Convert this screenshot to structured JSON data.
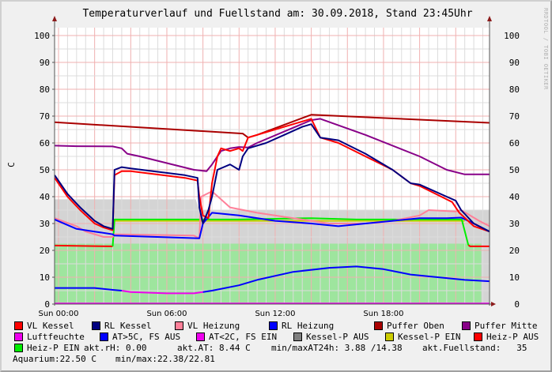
{
  "title": "Temperaturverlauf und Fuellstand am: 30.09.2018, Stand 23:45Uhr",
  "watermark": "RRDTOOL / TOBI OETIKER",
  "chart_data": {
    "type": "line",
    "title": "Temperaturverlauf und Fuellstand am: 30.09.2018, Stand 23:45Uhr",
    "ylabel": "C",
    "ylim": [
      0,
      100
    ],
    "yticks": [
      0,
      10,
      20,
      30,
      40,
      50,
      60,
      70,
      80,
      90,
      100
    ],
    "xticks": [
      "Sun 00:00",
      "Sun 06:00",
      "Sun 12:00",
      "Sun 18:00"
    ],
    "grid": true,
    "legend_placement": "bottom",
    "areas": [
      {
        "name": "Kessel-P AUS",
        "color": "#d4d4d4",
        "points": [
          [
            "Sat 23:47",
            39
          ],
          [
            "Sun 07:36",
            39
          ],
          [
            "Sun 07:48",
            35
          ],
          [
            "Sun 23:55",
            35
          ]
        ]
      },
      {
        "name": "Fuellstand",
        "color": "#9ee59e",
        "points": [
          [
            "Sat 23:47",
            22.5
          ],
          [
            "Sun 23:25",
            22.5
          ]
        ]
      }
    ],
    "series": [
      {
        "name": "Kessel-P EIN",
        "color": "#cccc00",
        "points": [
          [
            "Sun 03:06",
            31
          ],
          [
            "Sun 22:30",
            31
          ]
        ]
      },
      {
        "name": "Heiz-P AUS",
        "color": "#ff0000",
        "points": [
          [
            "Sat 23:47",
            21.8
          ],
          [
            "Sun 03:00",
            21.5
          ]
        ]
      },
      {
        "name": "Heiz-P AUS",
        "color": "#ff0000",
        "points": [
          [
            "Sun 22:42",
            22
          ],
          [
            "Sun 22:48",
            21.5
          ],
          [
            "Sun 23:55",
            21.5
          ]
        ]
      },
      {
        "name": "Heiz-P EIN",
        "color": "#00ee00",
        "points": [
          [
            "Sun 03:00",
            21.5
          ],
          [
            "Sun 03:06",
            31.5
          ],
          [
            "Sun 10:00",
            31.5
          ],
          [
            "Sun 14:00",
            32
          ],
          [
            "Sun 16:30",
            31.5
          ],
          [
            "Sun 22:20",
            31.5
          ],
          [
            "Sun 22:42",
            22
          ]
        ]
      },
      {
        "name": "Puffer Oben",
        "color": "#aa0000",
        "points": [
          [
            "Sat 23:47",
            67.7
          ],
          [
            "Sun 10:12",
            63.5
          ],
          [
            "Sun 10:30",
            62
          ],
          [
            "Sun 11:00",
            63
          ],
          [
            "Sun 14:00",
            70.5
          ],
          [
            "Sun 23:55",
            67.5
          ]
        ]
      },
      {
        "name": "Puffer Mitte",
        "color": "#880088",
        "points": [
          [
            "Sat 23:47",
            59
          ],
          [
            "Sun 01:00",
            58.8
          ],
          [
            "Sun 03:00",
            58.7
          ],
          [
            "Sun 03:30",
            58
          ],
          [
            "Sun 03:48",
            56
          ],
          [
            "Sun 04:30",
            55
          ],
          [
            "Sun 07:30",
            50
          ],
          [
            "Sun 08:12",
            49.5
          ],
          [
            "Sun 08:30",
            52
          ],
          [
            "Sun 09:00",
            57
          ],
          [
            "Sun 09:30",
            58
          ],
          [
            "Sun 10:00",
            58.5
          ],
          [
            "Sun 10:30",
            58.3
          ],
          [
            "Sun 11:00",
            60
          ],
          [
            "Sun 14:00",
            68.5
          ],
          [
            "Sun 14:30",
            69
          ],
          [
            "Sun 17:00",
            63
          ],
          [
            "Sun 20:00",
            55
          ],
          [
            "Sun 21:30",
            50
          ],
          [
            "Sun 22:30",
            48.3
          ],
          [
            "Sun 23:55",
            48.3
          ]
        ]
      },
      {
        "name": "VL Heizung",
        "color": "#ff8099",
        "points": [
          [
            "Sat 23:47",
            32
          ],
          [
            "Sun 01:00",
            29
          ],
          [
            "Sun 01:30",
            27
          ],
          [
            "Sun 02:30",
            25
          ],
          [
            "Sun 03:00",
            25
          ],
          [
            "Sun 03:06",
            26
          ],
          [
            "Sun 07:30",
            25.5
          ],
          [
            "Sun 07:48",
            24.5
          ],
          [
            "Sun 07:54",
            40
          ],
          [
            "Sun 08:30",
            42
          ],
          [
            "Sun 09:30",
            36
          ],
          [
            "Sun 11:00",
            34
          ],
          [
            "Sun 13:00",
            32
          ],
          [
            "Sun 15:00",
            30
          ],
          [
            "Sun 17:00",
            30
          ],
          [
            "Sun 18:30",
            31
          ],
          [
            "Sun 20:00",
            33
          ],
          [
            "Sun 20:30",
            35
          ],
          [
            "Sun 22:00",
            34.5
          ],
          [
            "Sun 22:18",
            35
          ],
          [
            "Sun 23:18",
            31
          ],
          [
            "Sun 23:55",
            29
          ]
        ]
      },
      {
        "name": "RL Heizung",
        "color": "#0000ff",
        "points": [
          [
            "Sat 23:47",
            31.5
          ],
          [
            "Sun 01:00",
            28
          ],
          [
            "Sun 02:00",
            27
          ],
          [
            "Sun 03:00",
            26
          ],
          [
            "Sun 03:06",
            25.5
          ],
          [
            "Sun 07:48",
            24.5
          ],
          [
            "Sun 08:00",
            30
          ],
          [
            "Sun 08:30",
            34
          ],
          [
            "Sun 10:00",
            33
          ],
          [
            "Sun 12:00",
            31
          ],
          [
            "Sun 14:00",
            30
          ],
          [
            "Sun 15:30",
            29
          ],
          [
            "Sun 17:00",
            30
          ],
          [
            "Sun 18:30",
            31
          ],
          [
            "Sun 20:00",
            32
          ],
          [
            "Sun 21:30",
            32
          ],
          [
            "Sun 22:18",
            32.2
          ],
          [
            "Sun 23:00",
            30
          ],
          [
            "Sun 23:55",
            27
          ]
        ]
      },
      {
        "name": "VL Kessel",
        "color": "#ff0000",
        "points": [
          [
            "Sat 23:47",
            47
          ],
          [
            "Sun 00:30",
            40
          ],
          [
            "Sun 01:12",
            35
          ],
          [
            "Sun 02:00",
            30
          ],
          [
            "Sun 02:30",
            28.5
          ],
          [
            "Sun 03:00",
            27.5
          ],
          [
            "Sun 03:06",
            48
          ],
          [
            "Sun 03:30",
            49.5
          ],
          [
            "Sun 04:00",
            49.5
          ],
          [
            "Sun 07:00",
            47
          ],
          [
            "Sun 07:42",
            46
          ],
          [
            "Sun 07:48",
            40
          ],
          [
            "Sun 08:00",
            33
          ],
          [
            "Sun 08:18",
            32
          ],
          [
            "Sun 08:30",
            45
          ],
          [
            "Sun 08:48",
            55
          ],
          [
            "Sun 09:00",
            58
          ],
          [
            "Sun 09:30",
            57
          ],
          [
            "Sun 10:00",
            58
          ],
          [
            "Sun 10:12",
            57
          ],
          [
            "Sun 10:30",
            62
          ],
          [
            "Sun 11:00",
            63
          ],
          [
            "Sun 12:30",
            66
          ],
          [
            "Sun 13:30",
            68
          ],
          [
            "Sun 14:00",
            69
          ],
          [
            "Sun 14:30",
            62
          ],
          [
            "Sun 15:00",
            61
          ],
          [
            "Sun 15:30",
            60
          ],
          [
            "Sun 17:00",
            55
          ],
          [
            "Sun 18:30",
            50
          ],
          [
            "Sun 19:30",
            45
          ],
          [
            "Sun 20:00",
            44
          ],
          [
            "Sun 21:30",
            39
          ],
          [
            "Sun 21:48",
            38
          ],
          [
            "Sun 22:12",
            34
          ],
          [
            "Sun 23:00",
            29
          ],
          [
            "Sun 23:55",
            27
          ]
        ]
      },
      {
        "name": "RL Kessel",
        "color": "#000080",
        "points": [
          [
            "Sat 23:47",
            48
          ],
          [
            "Sun 00:30",
            41
          ],
          [
            "Sun 01:12",
            36
          ],
          [
            "Sun 02:00",
            31
          ],
          [
            "Sun 02:30",
            29
          ],
          [
            "Sun 03:00",
            28
          ],
          [
            "Sun 03:06",
            50
          ],
          [
            "Sun 03:30",
            51
          ],
          [
            "Sun 04:00",
            50.5
          ],
          [
            "Sun 07:00",
            48
          ],
          [
            "Sun 07:42",
            47
          ],
          [
            "Sun 07:48",
            36
          ],
          [
            "Sun 08:00",
            30
          ],
          [
            "Sun 08:18",
            35
          ],
          [
            "Sun 08:30",
            40
          ],
          [
            "Sun 08:48",
            50
          ],
          [
            "Sun 09:30",
            52
          ],
          [
            "Sun 10:00",
            50
          ],
          [
            "Sun 10:12",
            55
          ],
          [
            "Sun 10:30",
            58
          ],
          [
            "Sun 11:30",
            60
          ],
          [
            "Sun 12:30",
            63
          ],
          [
            "Sun 13:30",
            66
          ],
          [
            "Sun 14:00",
            67
          ],
          [
            "Sun 14:30",
            62
          ],
          [
            "Sun 15:30",
            61
          ],
          [
            "Sun 17:00",
            56
          ],
          [
            "Sun 18:30",
            50
          ],
          [
            "Sun 19:30",
            45
          ],
          [
            "Sun 20:00",
            44.5
          ],
          [
            "Sun 21:30",
            40
          ],
          [
            "Sun 22:00",
            38.5
          ],
          [
            "Sun 22:18",
            35
          ],
          [
            "Sun 23:00",
            30
          ],
          [
            "Sun 23:55",
            27
          ]
        ]
      },
      {
        "name": "AT>5C, FS AUS",
        "color": "#0000ff",
        "points": [
          [
            "Sat 23:47",
            6
          ],
          [
            "Sun 02:00",
            6
          ],
          [
            "Sun 03:00",
            5.3
          ],
          [
            "Sun 03:30",
            5
          ]
        ]
      },
      {
        "name": "AT<2C, FS EIN",
        "color": "#ee00ee",
        "points": [
          [
            "Sun 03:30",
            5
          ],
          [
            "Sun 04:00",
            4.5
          ],
          [
            "Sun 06:00",
            4
          ],
          [
            "Sun 07:30",
            4
          ],
          [
            "Sun 08:00",
            4.5
          ]
        ]
      },
      {
        "name": "AT>5C, FS AUS",
        "color": "#0000ff",
        "points": [
          [
            "Sun 08:00",
            4.5
          ],
          [
            "Sun 08:30",
            5
          ],
          [
            "Sun 10:00",
            7
          ],
          [
            "Sun 11:00",
            9
          ],
          [
            "Sun 13:00",
            12
          ],
          [
            "Sun 15:00",
            13.5
          ],
          [
            "Sun 16:30",
            14
          ],
          [
            "Sun 18:00",
            13
          ],
          [
            "Sun 19:30",
            11
          ],
          [
            "Sun 21:00",
            10
          ],
          [
            "Sun 22:30",
            9
          ],
          [
            "Sun 23:55",
            8.5
          ]
        ]
      },
      {
        "name": "Luftfeuchte",
        "color": "#ee00ee",
        "points": [
          [
            "Sat 23:47",
            0.2
          ],
          [
            "Sun 23:55",
            0.2
          ]
        ]
      }
    ]
  },
  "legend": {
    "items": [
      {
        "label": "VL Kessel",
        "color": "#ff0000"
      },
      {
        "label": "RL Kessel",
        "color": "#000080"
      },
      {
        "label": "VL Heizung",
        "color": "#ff8099"
      },
      {
        "label": "RL Heizung",
        "color": "#0000ff"
      },
      {
        "label": "Puffer Oben",
        "color": "#aa0000"
      },
      {
        "label": "Puffer Mitte",
        "color": "#880088"
      },
      {
        "label": "Luftfeuchte",
        "color": "#ee00ee"
      },
      {
        "label": "AT>5C, FS AUS",
        "color": "#0000ff"
      },
      {
        "label": "AT<2C, FS EIN",
        "color": "#ee00ee"
      },
      {
        "label": "Kessel-P AUS",
        "color": "#808080"
      },
      {
        "label": "Kessel-P EIN",
        "color": "#cccc00"
      },
      {
        "label": "Heiz-P AUS",
        "color": "#ff0000"
      },
      {
        "label": "Heiz-P EIN",
        "color": "#00ee00"
      }
    ],
    "akt_rh": "akt.rH: 0.00",
    "akt_at": "akt.AT: 8.44 C",
    "minmax_at": "min/maxAT24h: 3.88 /14.38",
    "fuellstand": "akt.Fuellstand:   35",
    "aquarium": "Aquarium:22.50 C",
    "aquarium_minmax": "min/max:22.38/22.81"
  }
}
